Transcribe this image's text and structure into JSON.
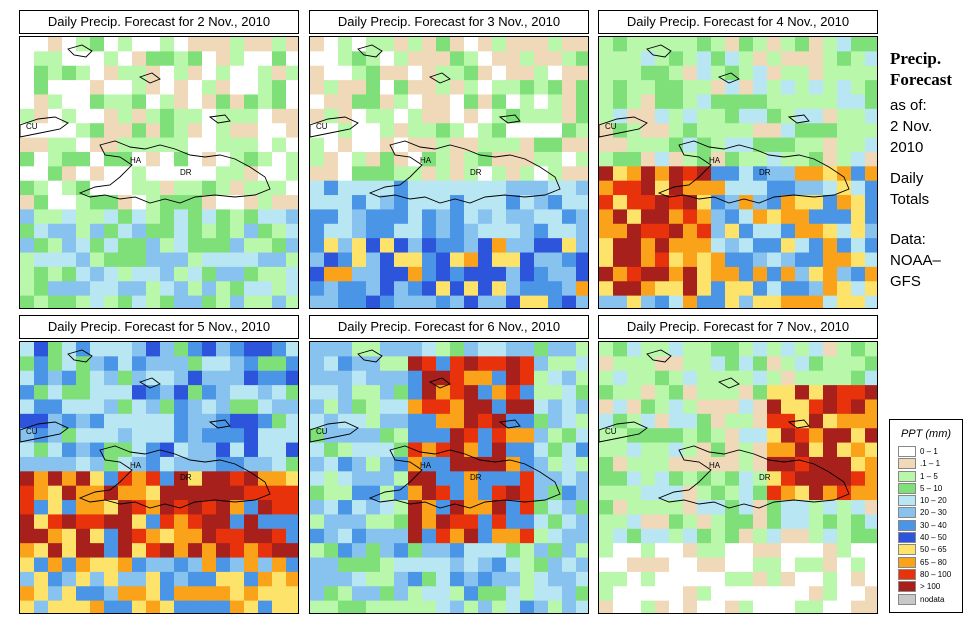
{
  "panels": [
    {
      "title": "Daily Precip. Forecast for  2 Nov., 2010",
      "seed": 11,
      "profile": "nov2"
    },
    {
      "title": "Daily Precip. Forecast for  3 Nov., 2010",
      "seed": 23,
      "profile": "nov3"
    },
    {
      "title": "Daily Precip. Forecast for  4 Nov., 2010",
      "seed": 37,
      "profile": "nov4"
    },
    {
      "title": "Daily Precip. Forecast for  5 Nov., 2010",
      "seed": 41,
      "profile": "nov5"
    },
    {
      "title": "Daily Precip. Forecast for  6 Nov., 2010",
      "seed": 53,
      "profile": "nov6"
    },
    {
      "title": "Daily Precip. Forecast for  7 Nov., 2010",
      "seed": 67,
      "profile": "nov7"
    }
  ],
  "map_labels": {
    "cuba": "CU",
    "haiti": "HA",
    "dominican_republic": "DR"
  },
  "sidebar": {
    "heading1": "Precip.",
    "heading2": "Forecast",
    "asof": "as of:",
    "date1": "2 Nov.",
    "date2": "2010",
    "daily1": "Daily",
    "daily2": "Totals",
    "data1": "Data:",
    "data2": "NOAA–",
    "data3": "GFS"
  },
  "legend": {
    "title": "PPT (mm)",
    "items": [
      {
        "label": "0 – 1",
        "color": "#ffffff"
      },
      {
        "label": ".1 – 1",
        "color": "#f0d9b8"
      },
      {
        "label": "1 – 5",
        "color": "#b9f7ab"
      },
      {
        "label": "5 – 10",
        "color": "#7fe07a"
      },
      {
        "label": "10 – 20",
        "color": "#b8e6f2"
      },
      {
        "label": "20 – 30",
        "color": "#88c2ee"
      },
      {
        "label": "30 – 40",
        "color": "#4a95e6"
      },
      {
        "label": "40 – 50",
        "color": "#2d55dc"
      },
      {
        "label": "50 – 65",
        "color": "#fde36a"
      },
      {
        "label": "65 – 80",
        "color": "#f9a21a"
      },
      {
        "label": "80 – 100",
        "color": "#e8320c"
      },
      {
        "label": "> 100",
        "color": "#a7201c"
      },
      {
        "label": "nodata",
        "color": "#c8c8c8"
      }
    ]
  }
}
